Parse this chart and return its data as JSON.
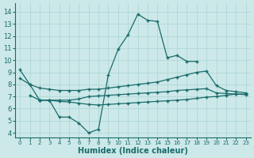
{
  "bg_color": "#cce8e8",
  "grid_color": "#aad4d4",
  "line_color": "#1a6b6b",
  "xlabel": "Humidex (Indice chaleur)",
  "x_ticks": [
    0,
    1,
    2,
    3,
    4,
    5,
    6,
    7,
    8,
    9,
    10,
    11,
    12,
    13,
    14,
    15,
    16,
    17,
    18,
    19,
    20,
    21,
    22,
    23
  ],
  "y_ticks": [
    4,
    5,
    6,
    7,
    8,
    9,
    10,
    11,
    12,
    13,
    14
  ],
  "ylim": [
    3.6,
    14.7
  ],
  "xlim": [
    -0.5,
    23.5
  ],
  "lines": [
    {
      "x": [
        0,
        1,
        2,
        3,
        4,
        5,
        6,
        7,
        8,
        9,
        10,
        11,
        12,
        13,
        14,
        15,
        16,
        17,
        18
      ],
      "y": [
        9.2,
        8.0,
        6.7,
        6.7,
        5.3,
        5.3,
        4.8,
        4.0,
        4.3,
        8.8,
        10.9,
        12.1,
        13.8,
        13.3,
        13.2,
        10.2,
        10.4,
        9.9,
        9.9
      ]
    },
    {
      "x": [
        0,
        1,
        2,
        3,
        4,
        5,
        6,
        7,
        8,
        9,
        10,
        11,
        12,
        13,
        14,
        15,
        16,
        17,
        18,
        19,
        20,
        21,
        22,
        23
      ],
      "y": [
        8.5,
        8.0,
        7.7,
        7.6,
        7.5,
        7.5,
        7.5,
        7.6,
        7.6,
        7.7,
        7.8,
        7.9,
        8.0,
        8.1,
        8.2,
        8.4,
        8.6,
        8.8,
        9.0,
        9.1,
        7.9,
        7.5,
        7.4,
        7.3
      ]
    },
    {
      "x": [
        1,
        2,
        3,
        4,
        5,
        6,
        7,
        8,
        9,
        10,
        11,
        12,
        13,
        14,
        15,
        16,
        17,
        18,
        19,
        20,
        21,
        22,
        23
      ],
      "y": [
        7.1,
        6.7,
        6.7,
        6.7,
        6.7,
        6.8,
        7.0,
        7.05,
        7.1,
        7.15,
        7.2,
        7.25,
        7.3,
        7.35,
        7.4,
        7.5,
        7.55,
        7.6,
        7.65,
        7.3,
        7.25,
        7.2,
        7.2
      ]
    },
    {
      "x": [
        2,
        3,
        4,
        5,
        6,
        7,
        8,
        9,
        10,
        11,
        12,
        13,
        14,
        15,
        16,
        17,
        18,
        19,
        20,
        21,
        22,
        23
      ],
      "y": [
        6.7,
        6.7,
        6.6,
        6.55,
        6.45,
        6.35,
        6.3,
        6.35,
        6.4,
        6.45,
        6.5,
        6.55,
        6.6,
        6.65,
        6.7,
        6.75,
        6.85,
        6.95,
        7.0,
        7.1,
        7.2,
        7.15
      ]
    }
  ]
}
